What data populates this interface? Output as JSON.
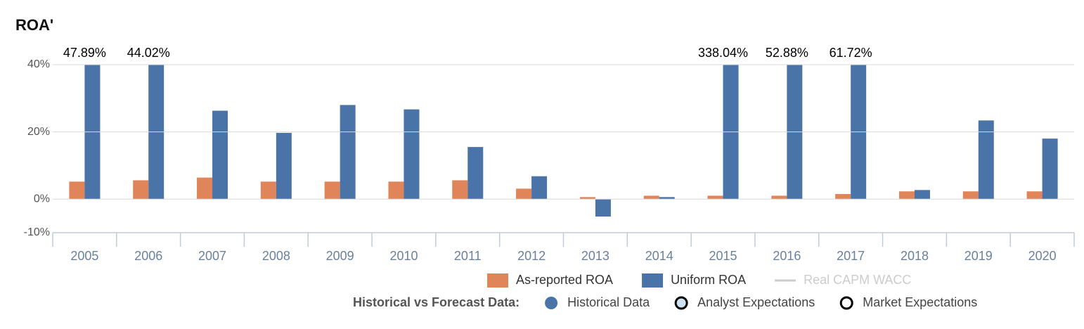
{
  "chart_data": {
    "type": "bar",
    "title": "ROA'",
    "categories": [
      "2005",
      "2006",
      "2007",
      "2008",
      "2009",
      "2010",
      "2011",
      "2012",
      "2013",
      "2014",
      "2015",
      "2016",
      "2017",
      "2018",
      "2019",
      "2020"
    ],
    "series": [
      {
        "name": "As-reported ROA",
        "color": "#e0855a",
        "values": [
          5.2,
          5.6,
          6.4,
          5.2,
          5.2,
          5.2,
          5.6,
          3.1,
          0.6,
          1.0,
          1.0,
          1.0,
          1.5,
          2.3,
          2.3,
          2.3
        ]
      },
      {
        "name": "Uniform ROA",
        "color": "#4a74a8",
        "values": [
          47.89,
          44.02,
          26.3,
          19.7,
          28.0,
          26.7,
          15.5,
          6.8,
          -5.2,
          0.6,
          338.04,
          52.88,
          61.72,
          2.7,
          23.4,
          18.0
        ],
        "value_labels": [
          "47.89%",
          "44.02%",
          null,
          null,
          null,
          null,
          null,
          null,
          null,
          null,
          "338.04%",
          "52.88%",
          "61.72%",
          null,
          null,
          null
        ]
      }
    ],
    "legend_extra": [
      {
        "name": "Real CAPM WACC",
        "color": "#cccccc"
      }
    ],
    "ylim": [
      -10,
      40
    ],
    "yticks": [
      {
        "value": -10,
        "label": "-10%"
      },
      {
        "value": 0,
        "label": "0%"
      },
      {
        "value": 20,
        "label": "20%"
      },
      {
        "value": 40,
        "label": "40%"
      }
    ],
    "grid": true,
    "footer": {
      "label": "Historical vs Forecast Data:",
      "items": [
        {
          "name": "Historical Data",
          "color": "#4a74a8"
        },
        {
          "name": "Analyst Expectations",
          "color": "#cfe3f5"
        },
        {
          "name": "Market Expectations",
          "color": "#ffffff"
        }
      ]
    }
  }
}
